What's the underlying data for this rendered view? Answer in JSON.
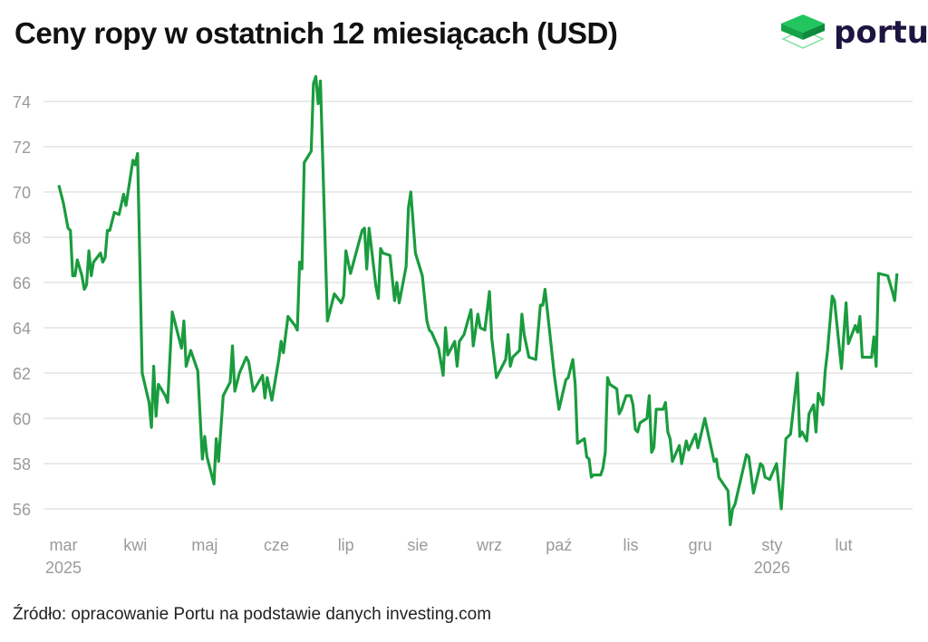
{
  "header": {
    "title": "Ceny ropy w ostatnich 12 miesiącach (USD)"
  },
  "logo": {
    "text": "portu",
    "color": "#1e1440",
    "accent": "#1db954"
  },
  "footer": {
    "source": "Źródło: opracowanie Portu na podstawie danych investing.com"
  },
  "chart_data": {
    "type": "line",
    "title": "Ceny ropy w ostatnich 12 miesiącach (USD)",
    "xlabel": "",
    "ylabel": "",
    "ylim": [
      56,
      74
    ],
    "yticks": [
      56,
      58,
      60,
      62,
      64,
      66,
      68,
      70,
      72,
      74
    ],
    "xlim": [
      "2025-03-01",
      "2026-02-28"
    ],
    "xticks": [
      {
        "date": "2025-03-01",
        "label": "mar",
        "year": "2025"
      },
      {
        "date": "2025-04-01",
        "label": "kwi"
      },
      {
        "date": "2025-05-01",
        "label": "maj"
      },
      {
        "date": "2025-06-01",
        "label": "cze"
      },
      {
        "date": "2025-07-01",
        "label": "lip"
      },
      {
        "date": "2025-08-01",
        "label": "sie"
      },
      {
        "date": "2025-09-01",
        "label": "wrz"
      },
      {
        "date": "2025-10-01",
        "label": "paź"
      },
      {
        "date": "2025-11-01",
        "label": "lis"
      },
      {
        "date": "2025-12-01",
        "label": "gru"
      },
      {
        "date": "2026-01-01",
        "label": "sty",
        "year": "2026"
      },
      {
        "date": "2026-02-01",
        "label": "lut"
      }
    ],
    "grid": "horizontal",
    "legend": "none",
    "line_color": "#1a9c3e",
    "series": [
      {
        "points": [
          [
            "2025-02-27",
            70.3
          ],
          [
            "2025-03-01",
            69.5
          ],
          [
            "2025-03-03",
            68.4
          ],
          [
            "2025-03-04",
            68.3
          ],
          [
            "2025-03-05",
            66.3
          ],
          [
            "2025-03-06",
            66.3
          ],
          [
            "2025-03-07",
            67.0
          ],
          [
            "2025-03-09",
            66.3
          ],
          [
            "2025-03-10",
            65.7
          ],
          [
            "2025-03-11",
            65.9
          ],
          [
            "2025-03-12",
            67.4
          ],
          [
            "2025-03-13",
            66.3
          ],
          [
            "2025-03-14",
            66.9
          ],
          [
            "2025-03-17",
            67.3
          ],
          [
            "2025-03-18",
            66.9
          ],
          [
            "2025-03-19",
            67.1
          ],
          [
            "2025-03-20",
            68.3
          ],
          [
            "2025-03-21",
            68.3
          ],
          [
            "2025-03-23",
            69.1
          ],
          [
            "2025-03-25",
            69.0
          ],
          [
            "2025-03-27",
            69.9
          ],
          [
            "2025-03-28",
            69.4
          ],
          [
            "2025-03-31",
            71.4
          ],
          [
            "2025-04-01",
            71.2
          ],
          [
            "2025-04-02",
            71.7
          ],
          [
            "2025-04-04",
            62.0
          ],
          [
            "2025-04-07",
            60.7
          ],
          [
            "2025-04-08",
            59.6
          ],
          [
            "2025-04-09",
            62.3
          ],
          [
            "2025-04-10",
            60.1
          ],
          [
            "2025-04-11",
            61.5
          ],
          [
            "2025-04-14",
            61.0
          ],
          [
            "2025-04-15",
            60.7
          ],
          [
            "2025-04-17",
            64.7
          ],
          [
            "2025-04-21",
            63.1
          ],
          [
            "2025-04-22",
            64.3
          ],
          [
            "2025-04-23",
            62.3
          ],
          [
            "2025-04-25",
            63.0
          ],
          [
            "2025-04-28",
            62.1
          ],
          [
            "2025-04-30",
            58.2
          ],
          [
            "2025-05-01",
            59.2
          ],
          [
            "2025-05-02",
            58.3
          ],
          [
            "2025-05-05",
            57.1
          ],
          [
            "2025-05-06",
            59.1
          ],
          [
            "2025-05-07",
            58.1
          ],
          [
            "2025-05-09",
            61.0
          ],
          [
            "2025-05-12",
            61.6
          ],
          [
            "2025-05-13",
            63.2
          ],
          [
            "2025-05-14",
            61.2
          ],
          [
            "2025-05-16",
            62.0
          ],
          [
            "2025-05-19",
            62.7
          ],
          [
            "2025-05-20",
            62.5
          ],
          [
            "2025-05-22",
            61.2
          ],
          [
            "2025-05-26",
            61.9
          ],
          [
            "2025-05-27",
            60.9
          ],
          [
            "2025-05-28",
            61.8
          ],
          [
            "2025-05-30",
            60.8
          ],
          [
            "2025-06-02",
            62.6
          ],
          [
            "2025-06-03",
            63.4
          ],
          [
            "2025-06-04",
            62.9
          ],
          [
            "2025-06-06",
            64.5
          ],
          [
            "2025-06-09",
            64.1
          ],
          [
            "2025-06-10",
            63.9
          ],
          [
            "2025-06-11",
            66.9
          ],
          [
            "2025-06-12",
            66.6
          ],
          [
            "2025-06-13",
            71.3
          ],
          [
            "2025-06-16",
            71.8
          ],
          [
            "2025-06-17",
            74.8
          ],
          [
            "2025-06-18",
            75.1
          ],
          [
            "2025-06-19",
            73.9
          ],
          [
            "2025-06-20",
            74.9
          ],
          [
            "2025-06-23",
            64.3
          ],
          [
            "2025-06-26",
            65.5
          ],
          [
            "2025-06-29",
            65.1
          ],
          [
            "2025-06-30",
            65.4
          ],
          [
            "2025-07-01",
            67.4
          ],
          [
            "2025-07-03",
            66.4
          ],
          [
            "2025-07-08",
            68.3
          ],
          [
            "2025-07-09",
            68.4
          ],
          [
            "2025-07-10",
            66.6
          ],
          [
            "2025-07-11",
            68.4
          ],
          [
            "2025-07-14",
            65.8
          ],
          [
            "2025-07-15",
            65.3
          ],
          [
            "2025-07-16",
            67.5
          ],
          [
            "2025-07-17",
            67.3
          ],
          [
            "2025-07-20",
            67.2
          ],
          [
            "2025-07-22",
            65.2
          ],
          [
            "2025-07-23",
            66.0
          ],
          [
            "2025-07-24",
            65.1
          ],
          [
            "2025-07-27",
            66.7
          ],
          [
            "2025-07-28",
            69.3
          ],
          [
            "2025-07-29",
            70.0
          ],
          [
            "2025-07-31",
            67.3
          ],
          [
            "2025-08-03",
            66.3
          ],
          [
            "2025-08-05",
            64.3
          ],
          [
            "2025-08-06",
            63.9
          ],
          [
            "2025-08-07",
            63.8
          ],
          [
            "2025-08-10",
            63.1
          ],
          [
            "2025-08-12",
            61.9
          ],
          [
            "2025-08-13",
            64.0
          ],
          [
            "2025-08-14",
            62.8
          ],
          [
            "2025-08-17",
            63.4
          ],
          [
            "2025-08-18",
            62.3
          ],
          [
            "2025-08-19",
            63.4
          ],
          [
            "2025-08-21",
            63.7
          ],
          [
            "2025-08-24",
            64.8
          ],
          [
            "2025-08-25",
            63.2
          ],
          [
            "2025-08-27",
            64.6
          ],
          [
            "2025-08-28",
            64.0
          ],
          [
            "2025-08-30",
            63.9
          ],
          [
            "2025-09-01",
            65.6
          ],
          [
            "2025-09-02",
            63.5
          ],
          [
            "2025-09-04",
            61.8
          ],
          [
            "2025-09-06",
            62.2
          ],
          [
            "2025-09-08",
            62.6
          ],
          [
            "2025-09-09",
            63.7
          ],
          [
            "2025-09-10",
            62.3
          ],
          [
            "2025-09-11",
            62.7
          ],
          [
            "2025-09-14",
            63.0
          ],
          [
            "2025-09-15",
            64.6
          ],
          [
            "2025-09-16",
            63.7
          ],
          [
            "2025-09-18",
            62.7
          ],
          [
            "2025-09-21",
            62.6
          ],
          [
            "2025-09-23",
            65.0
          ],
          [
            "2025-09-24",
            65.0
          ],
          [
            "2025-09-25",
            65.7
          ],
          [
            "2025-09-27",
            63.8
          ],
          [
            "2025-09-29",
            61.9
          ],
          [
            "2025-10-01",
            60.4
          ],
          [
            "2025-10-04",
            61.7
          ],
          [
            "2025-10-05",
            61.8
          ],
          [
            "2025-10-07",
            62.6
          ],
          [
            "2025-10-08",
            61.5
          ],
          [
            "2025-10-09",
            58.9
          ],
          [
            "2025-10-12",
            59.1
          ],
          [
            "2025-10-13",
            58.3
          ],
          [
            "2025-10-14",
            58.2
          ],
          [
            "2025-10-15",
            57.4
          ],
          [
            "2025-10-16",
            57.5
          ],
          [
            "2025-10-19",
            57.5
          ],
          [
            "2025-10-20",
            57.8
          ],
          [
            "2025-10-21",
            58.5
          ],
          [
            "2025-10-22",
            61.8
          ],
          [
            "2025-10-23",
            61.5
          ],
          [
            "2025-10-26",
            61.3
          ],
          [
            "2025-10-27",
            60.2
          ],
          [
            "2025-10-28",
            60.4
          ],
          [
            "2025-10-30",
            61.0
          ],
          [
            "2025-11-01",
            61.0
          ],
          [
            "2025-11-02",
            60.6
          ],
          [
            "2025-11-03",
            59.5
          ],
          [
            "2025-11-04",
            59.4
          ],
          [
            "2025-11-05",
            59.8
          ],
          [
            "2025-11-08",
            60.0
          ],
          [
            "2025-11-09",
            61.0
          ],
          [
            "2025-11-10",
            58.5
          ],
          [
            "2025-11-11",
            58.7
          ],
          [
            "2025-11-12",
            60.4
          ],
          [
            "2025-11-15",
            60.4
          ],
          [
            "2025-11-16",
            60.7
          ],
          [
            "2025-11-17",
            59.4
          ],
          [
            "2025-11-18",
            59.1
          ],
          [
            "2025-11-19",
            58.1
          ],
          [
            "2025-11-22",
            58.8
          ],
          [
            "2025-11-23",
            58.0
          ],
          [
            "2025-11-25",
            59.0
          ],
          [
            "2025-11-26",
            58.6
          ],
          [
            "2025-11-29",
            59.3
          ],
          [
            "2025-11-30",
            58.7
          ],
          [
            "2025-12-03",
            60.0
          ],
          [
            "2025-12-07",
            58.1
          ],
          [
            "2025-12-08",
            58.2
          ],
          [
            "2025-12-09",
            57.4
          ],
          [
            "2025-12-13",
            56.8
          ],
          [
            "2025-12-14",
            55.3
          ],
          [
            "2025-12-15",
            56.0
          ],
          [
            "2025-12-16",
            56.2
          ],
          [
            "2025-12-21",
            58.4
          ],
          [
            "2025-12-22",
            58.3
          ],
          [
            "2025-12-24",
            56.7
          ],
          [
            "2025-12-27",
            58.0
          ],
          [
            "2025-12-28",
            57.9
          ],
          [
            "2025-12-29",
            57.4
          ],
          [
            "2025-12-31",
            57.3
          ],
          [
            "2026-01-03",
            58.0
          ],
          [
            "2026-01-05",
            56.0
          ],
          [
            "2026-01-07",
            59.1
          ],
          [
            "2026-01-09",
            59.3
          ],
          [
            "2026-01-12",
            62.0
          ],
          [
            "2026-01-13",
            59.2
          ],
          [
            "2026-01-14",
            59.4
          ],
          [
            "2026-01-16",
            59.0
          ],
          [
            "2026-01-17",
            60.2
          ],
          [
            "2026-01-19",
            60.6
          ],
          [
            "2026-01-20",
            59.4
          ],
          [
            "2026-01-21",
            61.1
          ],
          [
            "2026-01-23",
            60.6
          ],
          [
            "2026-01-24",
            62.1
          ],
          [
            "2026-01-25",
            63.0
          ],
          [
            "2026-01-27",
            65.4
          ],
          [
            "2026-01-28",
            65.2
          ],
          [
            "2026-01-31",
            62.2
          ],
          [
            "2026-02-02",
            65.1
          ],
          [
            "2026-02-03",
            63.3
          ],
          [
            "2026-02-06",
            64.1
          ],
          [
            "2026-02-07",
            63.8
          ],
          [
            "2026-02-08",
            64.5
          ],
          [
            "2026-02-09",
            62.7
          ],
          [
            "2026-02-11",
            62.7
          ],
          [
            "2026-02-13",
            62.7
          ],
          [
            "2026-02-14",
            63.6
          ],
          [
            "2026-02-15",
            62.3
          ],
          [
            "2026-02-16",
            66.4
          ],
          [
            "2026-02-20",
            66.3
          ],
          [
            "2026-02-22",
            65.6
          ],
          [
            "2026-02-23",
            65.2
          ],
          [
            "2026-02-24",
            66.4
          ]
        ]
      }
    ]
  }
}
